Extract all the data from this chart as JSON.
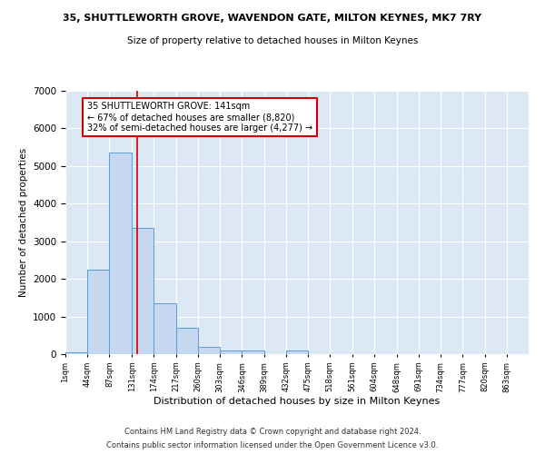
{
  "title": "35, SHUTTLEWORTH GROVE, WAVENDON GATE, MILTON KEYNES, MK7 7RY",
  "subtitle": "Size of property relative to detached houses in Milton Keynes",
  "xlabel": "Distribution of detached houses by size in Milton Keynes",
  "ylabel": "Number of detached properties",
  "footer_line1": "Contains HM Land Registry data © Crown copyright and database right 2024.",
  "footer_line2": "Contains public sector information licensed under the Open Government Licence v3.0.",
  "bin_edges": [
    1,
    44,
    87,
    131,
    174,
    217,
    260,
    303,
    346,
    389,
    432,
    475,
    518,
    561,
    604,
    648,
    691,
    734,
    777,
    820,
    863
  ],
  "bar_heights": [
    50,
    2250,
    5350,
    3350,
    1350,
    700,
    200,
    100,
    100,
    0,
    100,
    0,
    0,
    0,
    0,
    0,
    0,
    0,
    0,
    0
  ],
  "bar_color": "#c5d8f0",
  "bar_edge_color": "#5b9bd5",
  "bg_color": "#dce8f5",
  "grid_color": "#ffffff",
  "fig_bg_color": "#ffffff",
  "vline_x": 141,
  "vline_color": "#cc0000",
  "annotation_text": "35 SHUTTLEWORTH GROVE: 141sqm\n← 67% of detached houses are smaller (8,820)\n32% of semi-detached houses are larger (4,277) →",
  "annotation_box_color": "#ffffff",
  "annotation_border_color": "#cc0000",
  "ylim": [
    0,
    7000
  ],
  "yticks": [
    0,
    1000,
    2000,
    3000,
    4000,
    5000,
    6000,
    7000
  ],
  "tick_labels": [
    "1sqm",
    "44sqm",
    "87sqm",
    "131sqm",
    "174sqm",
    "217sqm",
    "260sqm",
    "303sqm",
    "346sqm",
    "389sqm",
    "432sqm",
    "475sqm",
    "518sqm",
    "561sqm",
    "604sqm",
    "648sqm",
    "691sqm",
    "734sqm",
    "777sqm",
    "820sqm",
    "863sqm"
  ]
}
